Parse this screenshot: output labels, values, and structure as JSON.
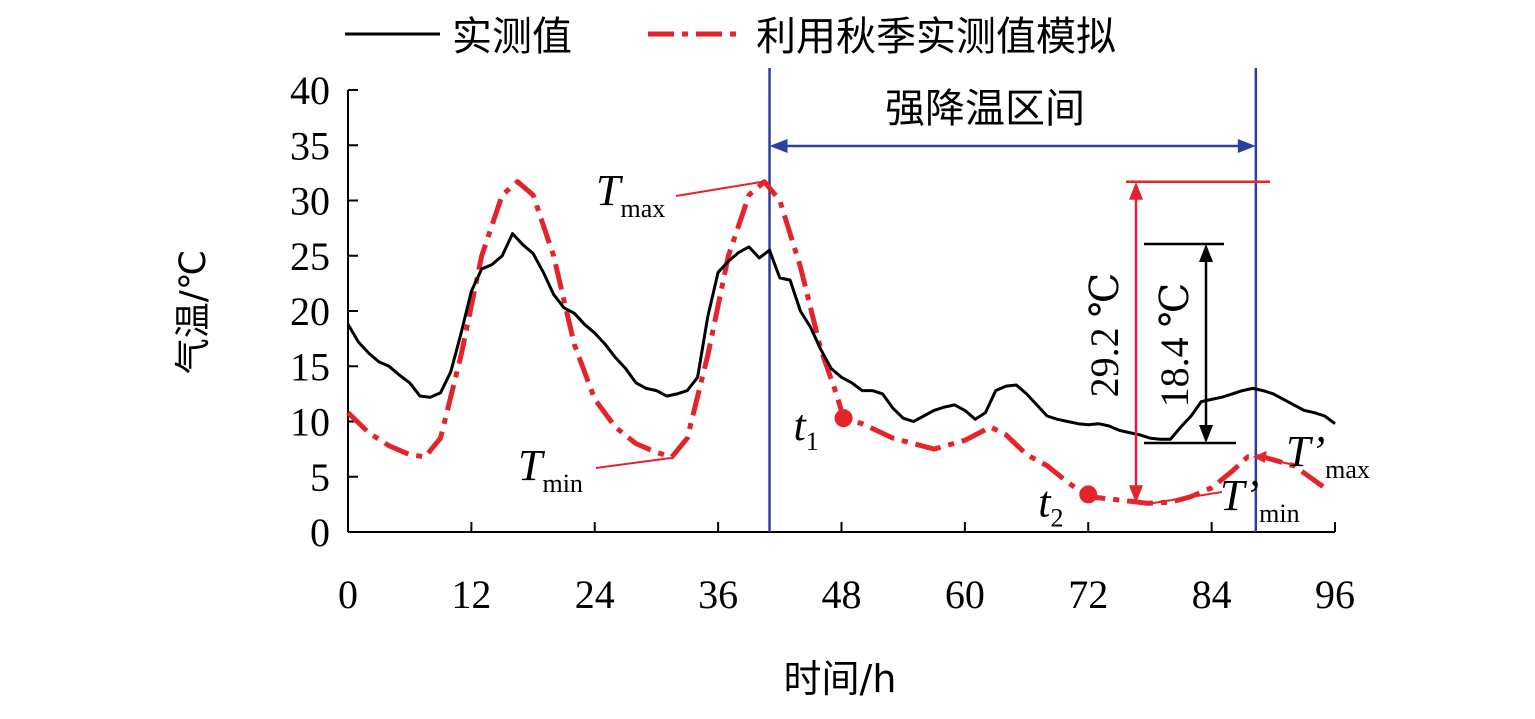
{
  "chart_data": {
    "type": "line",
    "legend": {
      "placement": "top",
      "entries": [
        "实测值",
        "利用秋季实测值模拟"
      ]
    },
    "xlabel": "时间/h",
    "ylabel": "气温/℃",
    "xlim": [
      0,
      96
    ],
    "ylim": [
      0,
      40
    ],
    "xticks": [
      0,
      12,
      24,
      36,
      48,
      60,
      72,
      84,
      96
    ],
    "yticks": [
      0,
      5,
      10,
      15,
      20,
      25,
      30,
      35,
      40
    ],
    "grid": false,
    "series": [
      {
        "name": "实测值",
        "color": "#000000",
        "style": "solid",
        "points": [
          [
            0,
            18.8
          ],
          [
            1,
            17.2
          ],
          [
            2,
            16.2
          ],
          [
            3,
            15.4
          ],
          [
            4,
            15.0
          ],
          [
            5,
            14.2
          ],
          [
            6,
            13.5
          ],
          [
            7,
            12.3
          ],
          [
            8,
            12.2
          ],
          [
            9,
            12.6
          ],
          [
            10,
            14.5
          ],
          [
            11,
            18.0
          ],
          [
            12,
            21.8
          ],
          [
            13,
            23.8
          ],
          [
            14,
            24.2
          ],
          [
            15,
            25.0
          ],
          [
            16,
            27.0
          ],
          [
            17,
            26.0
          ],
          [
            18,
            25.2
          ],
          [
            19,
            23.5
          ],
          [
            20,
            21.5
          ],
          [
            21,
            20.3
          ],
          [
            22,
            19.8
          ],
          [
            23,
            18.8
          ],
          [
            24,
            18.0
          ],
          [
            25,
            17.0
          ],
          [
            26,
            15.8
          ],
          [
            27,
            14.8
          ],
          [
            28,
            13.5
          ],
          [
            29,
            13.0
          ],
          [
            30,
            12.8
          ],
          [
            31,
            12.3
          ],
          [
            32,
            12.5
          ],
          [
            33,
            12.8
          ],
          [
            34,
            14.0
          ],
          [
            35,
            19.5
          ],
          [
            36,
            23.5
          ],
          [
            37,
            24.5
          ],
          [
            38,
            25.3
          ],
          [
            39,
            25.8
          ],
          [
            40,
            24.8
          ],
          [
            41,
            25.5
          ],
          [
            42,
            23.0
          ],
          [
            43,
            22.8
          ],
          [
            44,
            20.0
          ],
          [
            45,
            18.5
          ],
          [
            46,
            16.5
          ],
          [
            47,
            14.8
          ],
          [
            48,
            14.0
          ],
          [
            49,
            13.5
          ],
          [
            50,
            12.8
          ],
          [
            51,
            12.8
          ],
          [
            52,
            12.5
          ],
          [
            53,
            11.2
          ],
          [
            54,
            10.3
          ],
          [
            55,
            10.0
          ],
          [
            56,
            10.5
          ],
          [
            57,
            11.0
          ],
          [
            58,
            11.3
          ],
          [
            59,
            11.5
          ],
          [
            60,
            11.0
          ],
          [
            61,
            10.2
          ],
          [
            62,
            10.8
          ],
          [
            63,
            12.8
          ],
          [
            64,
            13.2
          ],
          [
            65,
            13.3
          ],
          [
            66,
            12.5
          ],
          [
            67,
            11.5
          ],
          [
            68,
            10.5
          ],
          [
            69,
            10.2
          ],
          [
            70,
            10.0
          ],
          [
            71,
            9.8
          ],
          [
            72,
            9.7
          ],
          [
            73,
            9.8
          ],
          [
            74,
            9.6
          ],
          [
            75,
            9.2
          ],
          [
            76,
            9.0
          ],
          [
            77,
            8.8
          ],
          [
            78,
            8.5
          ],
          [
            79,
            8.4
          ],
          [
            80,
            8.4
          ],
          [
            81,
            9.5
          ],
          [
            82,
            10.5
          ],
          [
            83,
            11.8
          ],
          [
            84,
            12.0
          ],
          [
            85,
            12.2
          ],
          [
            86,
            12.5
          ],
          [
            87,
            12.8
          ],
          [
            88,
            13.0
          ],
          [
            89,
            12.8
          ],
          [
            90,
            12.5
          ],
          [
            91,
            12.0
          ],
          [
            92,
            11.5
          ],
          [
            93,
            11.0
          ],
          [
            94,
            10.8
          ],
          [
            95,
            10.5
          ],
          [
            96,
            9.8
          ]
        ]
      },
      {
        "name": "利用秋季实测值模拟",
        "color": "#e3242b",
        "style": "dash-dot",
        "points": [
          [
            0,
            10.8
          ],
          [
            2,
            9.0
          ],
          [
            4,
            7.8
          ],
          [
            6,
            7.0
          ],
          [
            7.5,
            6.8
          ],
          [
            9,
            8.5
          ],
          [
            11,
            16.0
          ],
          [
            13,
            25.0
          ],
          [
            15,
            30.5
          ],
          [
            16.5,
            31.7
          ],
          [
            18,
            30.5
          ],
          [
            20,
            25.0
          ],
          [
            22,
            17.0
          ],
          [
            24,
            12.0
          ],
          [
            26,
            9.5
          ],
          [
            28,
            8.0
          ],
          [
            30,
            7.2
          ],
          [
            31.5,
            6.8
          ],
          [
            33,
            8.5
          ],
          [
            35,
            16.0
          ],
          [
            37,
            25.0
          ],
          [
            39,
            30.5
          ],
          [
            40.5,
            31.7
          ],
          [
            42,
            30.0
          ],
          [
            44,
            24.0
          ],
          [
            46,
            16.5
          ],
          [
            47.5,
            12.5
          ],
          [
            48.2,
            10.3
          ],
          [
            50,
            9.8
          ],
          [
            53,
            8.5
          ],
          [
            57,
            7.5
          ],
          [
            60,
            8.3
          ],
          [
            62.5,
            9.5
          ],
          [
            64,
            8.8
          ],
          [
            66,
            7.0
          ],
          [
            68,
            6.0
          ],
          [
            70,
            4.5
          ],
          [
            72,
            3.2
          ],
          [
            74,
            3.0
          ],
          [
            76,
            2.8
          ],
          [
            77.8,
            2.6
          ],
          [
            80,
            2.7
          ],
          [
            82,
            3.2
          ],
          [
            84,
            4.0
          ],
          [
            86,
            5.5
          ],
          [
            87.5,
            6.8
          ],
          [
            89,
            6.8
          ],
          [
            92,
            6.0
          ],
          [
            95,
            4.0
          ]
        ]
      }
    ],
    "markers": [
      {
        "label": "t",
        "sub": "1",
        "x": 48.2,
        "y": 10.3
      },
      {
        "label": "t",
        "sub": "2",
        "x": 72,
        "y": 3.4
      }
    ],
    "annotations": {
      "interval_label": "强降温区间",
      "interval_x": [
        41,
        88.3
      ],
      "drop_total": "29.2 ℃",
      "drop_measured": "18.4 ℃",
      "tmax": {
        "main": "T",
        "sub": "max",
        "point": [
          40.5,
          31.7
        ]
      },
      "tmin": {
        "main": "T",
        "sub": "min",
        "point": [
          31.5,
          6.8
        ]
      },
      "tmax_prime": {
        "main": "T’",
        "sub": "max",
        "point": [
          88,
          6.8
        ]
      },
      "tmin_prime": {
        "main": "T’",
        "sub": "min",
        "point": [
          77.8,
          2.6
        ]
      }
    }
  }
}
